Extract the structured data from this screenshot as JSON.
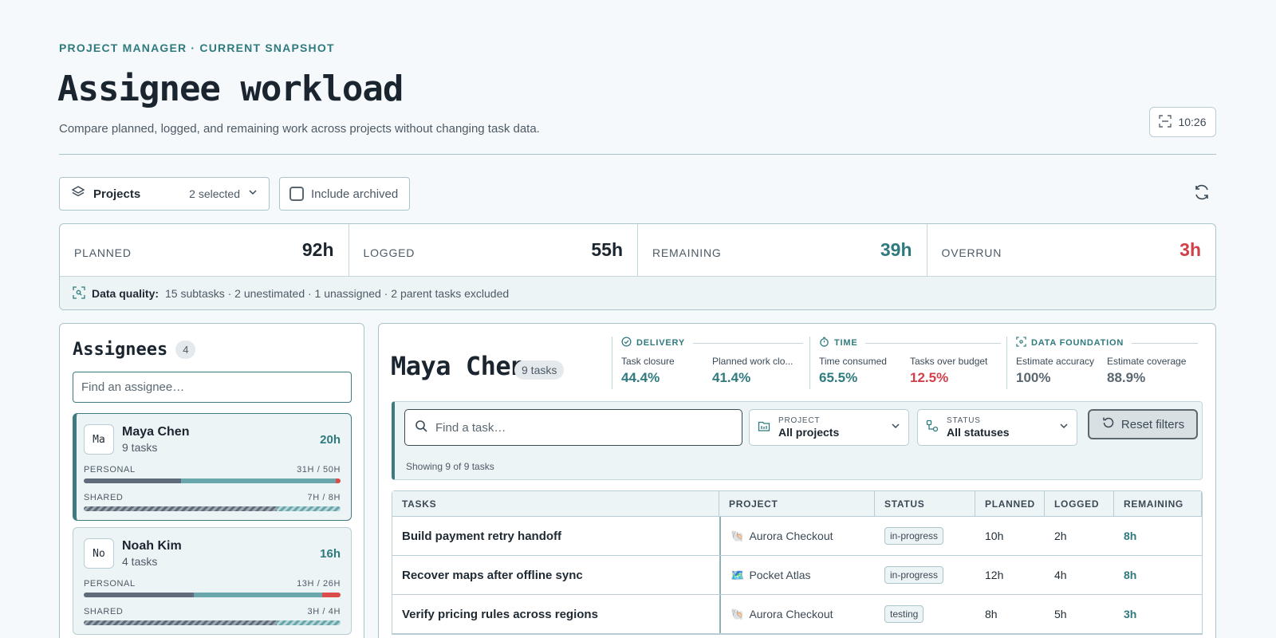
{
  "header": {
    "eyebrow": "PROJECT MANAGER · CURRENT SNAPSHOT",
    "title": "Assignee workload",
    "subtitle": "Compare planned, logged, and remaining work across projects without changing task data.",
    "clock": "10:26"
  },
  "toolbar": {
    "projects_label": "Projects",
    "projects_count": "2 selected",
    "archived_label": "Include archived",
    "archived_checked": false
  },
  "summary": {
    "planned_label": "PLANNED",
    "planned": "92h",
    "logged_label": "LOGGED",
    "logged": "55h",
    "remaining_label": "REMAINING",
    "remaining": "39h",
    "overrun_label": "OVERRUN",
    "overrun": "3h",
    "dq_label": "Data quality:",
    "dq_text": "15 subtasks · 2 unestimated · 1 unassigned · 2 parent tasks excluded"
  },
  "assignees": {
    "heading": "Assignees",
    "count": "4",
    "search_placeholder": "Find an assignee…",
    "list": [
      {
        "initials": "Ma",
        "name": "Maya Chen",
        "tasks": "9 tasks",
        "hours": "20h",
        "active": true,
        "personal_label": "PERSONAL",
        "personal_value": "31H / 50H",
        "personal_logged": 0.38,
        "personal_remaining": 0.6,
        "personal_over": 0.02,
        "shared_label": "SHARED",
        "shared_value": "7H / 8H",
        "shared_logged": 0.75,
        "shared_remaining": 0.25,
        "shared_over": 0
      },
      {
        "initials": "No",
        "name": "Noah Kim",
        "tasks": "4 tasks",
        "hours": "16h",
        "active": false,
        "personal_label": "PERSONAL",
        "personal_value": "13H / 26H",
        "personal_logged": 0.43,
        "personal_remaining": 0.5,
        "personal_over": 0.07,
        "shared_label": "SHARED",
        "shared_value": "3H / 4H",
        "shared_logged": 0.75,
        "shared_remaining": 0.25,
        "shared_over": 0
      }
    ]
  },
  "detail": {
    "name": "Maya Chen",
    "tasks_pill": "9 tasks",
    "groups": [
      {
        "head": "DELIVERY",
        "icon": "check-circle-icon",
        "m1_label": "Task closure",
        "m1_value": "44.4%",
        "m2_label": "Planned work clo...",
        "m2_value": "41.4%"
      },
      {
        "head": "TIME",
        "icon": "stopwatch-icon",
        "m1_label": "Time consumed",
        "m1_value": "65.5%",
        "m2_label": "Tasks over budget",
        "m2_value": "12.5%"
      },
      {
        "head": "DATA FOUNDATION",
        "icon": "scan-icon",
        "m1_label": "Estimate accuracy",
        "m1_value": "100%",
        "m2_label": "Estimate coverage",
        "m2_value": "88.9%"
      }
    ],
    "filters": {
      "search_placeholder": "Find a task…",
      "project_caption": "PROJECT",
      "project_value": "All projects",
      "status_caption": "STATUS",
      "status_value": "All statuses",
      "reset_label": "Reset filters",
      "showing": "Showing 9 of 9 tasks"
    },
    "table": {
      "headers": [
        "TASKS",
        "PROJECT",
        "STATUS",
        "PLANNED",
        "LOGGED",
        "REMAINING"
      ],
      "rows": [
        {
          "task": "Build payment retry handoff",
          "project_icon": "🐚",
          "project": "Aurora Checkout",
          "status": "in-progress",
          "planned": "10h",
          "logged": "2h",
          "remaining": "8h"
        },
        {
          "task": "Recover maps after offline sync",
          "project_icon": "🗺️",
          "project": "Pocket Atlas",
          "status": "in-progress",
          "planned": "12h",
          "logged": "4h",
          "remaining": "8h"
        },
        {
          "task": "Verify pricing rules across regions",
          "project_icon": "🐚",
          "project": "Aurora Checkout",
          "status": "testing",
          "planned": "8h",
          "logged": "5h",
          "remaining": "3h"
        }
      ]
    }
  },
  "colors": {
    "accent": "#2f7a7e",
    "danger": "#d23f4a",
    "logged_bar": "#5f6b7a",
    "remaining_bar": "#6aa7ad"
  }
}
